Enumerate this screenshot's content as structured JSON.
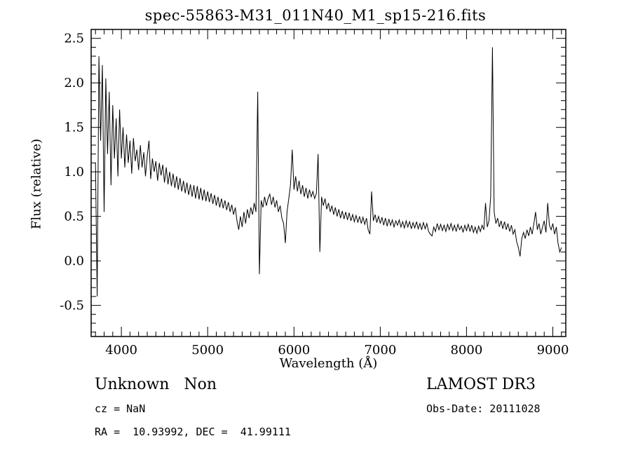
{
  "title": "spec-55863-M31_011N40_M1_sp15-216.fits",
  "footer": {
    "class_label": "Unknown   Non",
    "survey": "LAMOST DR3",
    "cz": "cz = NaN",
    "obs_date": "Obs-Date: 20111028",
    "coords": "RA =  10.93992, DEC =  41.99111"
  },
  "chart_data": {
    "type": "line",
    "title": "spec-55863-M31_011N40_M1_sp15-216.fits",
    "xlabel": "Wavelength (Å)",
    "ylabel": "Flux (relative)",
    "xlim": [
      3650,
      9150
    ],
    "ylim": [
      -0.85,
      2.6
    ],
    "x_ticks_major": [
      4000,
      5000,
      6000,
      7000,
      8000,
      9000
    ],
    "x_tick_labels": [
      "4000",
      "5000",
      "6000",
      "7000",
      "8000",
      "9000"
    ],
    "y_ticks_major": [
      -0.5,
      0.0,
      0.5,
      1.0,
      1.5,
      2.0,
      2.5
    ],
    "y_tick_labels": [
      "-0.5",
      "0.0",
      "0.5",
      "1.0",
      "1.5",
      "2.0",
      "2.5"
    ],
    "x_minor_step": 100,
    "y_minor_step": 0.1,
    "grid": false,
    "legend": "none",
    "line_color": "#000000",
    "x_start": 3700,
    "x_step": 20,
    "values": [
      1.1,
      -0.4,
      2.3,
      1.35,
      2.2,
      0.55,
      2.05,
      1.2,
      1.9,
      0.85,
      1.75,
      1.15,
      1.6,
      0.95,
      1.7,
      1.15,
      1.5,
      1.05,
      1.42,
      1.1,
      1.35,
      0.98,
      1.38,
      1.12,
      1.25,
      1.02,
      1.3,
      1.05,
      1.22,
      0.95,
      1.18,
      1.35,
      0.92,
      1.15,
      1.0,
      1.12,
      0.9,
      1.1,
      0.96,
      1.08,
      0.88,
      1.05,
      0.86,
      1.0,
      0.84,
      0.98,
      0.82,
      0.95,
      0.8,
      0.93,
      0.78,
      0.9,
      0.76,
      0.88,
      0.74,
      0.86,
      0.72,
      0.85,
      0.7,
      0.84,
      0.69,
      0.82,
      0.68,
      0.8,
      0.67,
      0.78,
      0.66,
      0.76,
      0.64,
      0.74,
      0.62,
      0.72,
      0.6,
      0.7,
      0.59,
      0.68,
      0.57,
      0.66,
      0.55,
      0.63,
      0.52,
      0.6,
      0.45,
      0.35,
      0.5,
      0.38,
      0.55,
      0.42,
      0.58,
      0.48,
      0.6,
      0.52,
      0.65,
      0.55,
      1.9,
      -0.15,
      0.68,
      0.6,
      0.72,
      0.62,
      0.7,
      0.75,
      0.63,
      0.72,
      0.6,
      0.68,
      0.55,
      0.62,
      0.48,
      0.42,
      0.2,
      0.55,
      0.7,
      0.85,
      1.25,
      0.8,
      0.95,
      0.78,
      0.9,
      0.75,
      0.85,
      0.72,
      0.82,
      0.7,
      0.8,
      0.72,
      0.78,
      0.7,
      0.76,
      1.2,
      0.1,
      0.72,
      0.62,
      0.7,
      0.58,
      0.65,
      0.55,
      0.62,
      0.52,
      0.6,
      0.5,
      0.58,
      0.48,
      0.56,
      0.47,
      0.55,
      0.46,
      0.54,
      0.45,
      0.52,
      0.44,
      0.51,
      0.43,
      0.5,
      0.42,
      0.49,
      0.41,
      0.48,
      0.35,
      0.3,
      0.78,
      0.45,
      0.52,
      0.43,
      0.5,
      0.42,
      0.49,
      0.4,
      0.48,
      0.39,
      0.47,
      0.4,
      0.46,
      0.38,
      0.45,
      0.4,
      0.46,
      0.38,
      0.44,
      0.37,
      0.45,
      0.38,
      0.44,
      0.36,
      0.43,
      0.37,
      0.44,
      0.36,
      0.42,
      0.35,
      0.43,
      0.36,
      0.42,
      0.33,
      0.3,
      0.28,
      0.38,
      0.33,
      0.42,
      0.35,
      0.41,
      0.34,
      0.4,
      0.33,
      0.41,
      0.35,
      0.42,
      0.34,
      0.4,
      0.33,
      0.41,
      0.35,
      0.39,
      0.32,
      0.4,
      0.34,
      0.41,
      0.33,
      0.4,
      0.32,
      0.38,
      0.31,
      0.39,
      0.33,
      0.4,
      0.35,
      0.65,
      0.38,
      0.45,
      0.72,
      2.4,
      0.55,
      0.42,
      0.48,
      0.38,
      0.45,
      0.36,
      0.44,
      0.35,
      0.42,
      0.33,
      0.4,
      0.3,
      0.35,
      0.22,
      0.15,
      0.05,
      0.25,
      0.32,
      0.25,
      0.35,
      0.28,
      0.38,
      0.3,
      0.42,
      0.55,
      0.35,
      0.42,
      0.3,
      0.38,
      0.45,
      0.32,
      0.65,
      0.4,
      0.35,
      0.42,
      0.3,
      0.38,
      0.2,
      0.1,
      0.15
    ]
  }
}
